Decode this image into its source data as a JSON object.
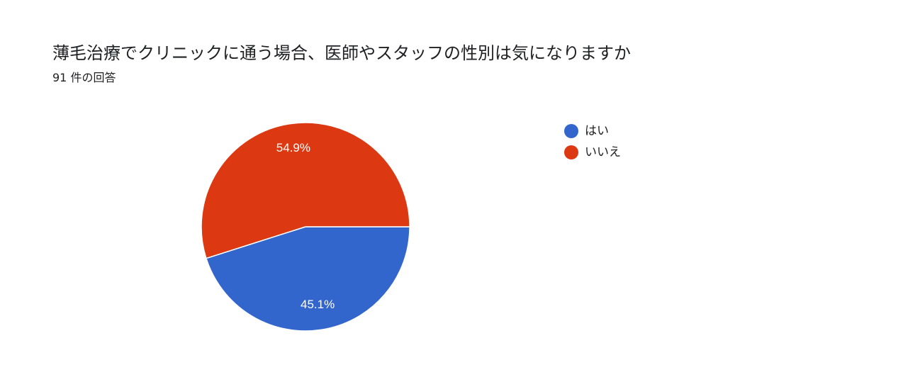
{
  "header": {
    "title": "薄毛治療でクリニックに通う場合、医師やスタッフの性別は気になりますか",
    "response_count": "91 件の回答"
  },
  "chart_data": {
    "type": "pie",
    "title": "薄毛治療でクリニックに通う場合、医師やスタッフの性別は気になりますか",
    "subtitle": "91 件の回答",
    "legend_position": "right",
    "slices": [
      {
        "label": "はい",
        "value": 45.1,
        "display": "45.1%",
        "color": "#3366cc"
      },
      {
        "label": "いいえ",
        "value": 54.9,
        "display": "54.9%",
        "color": "#dc3912"
      }
    ]
  }
}
